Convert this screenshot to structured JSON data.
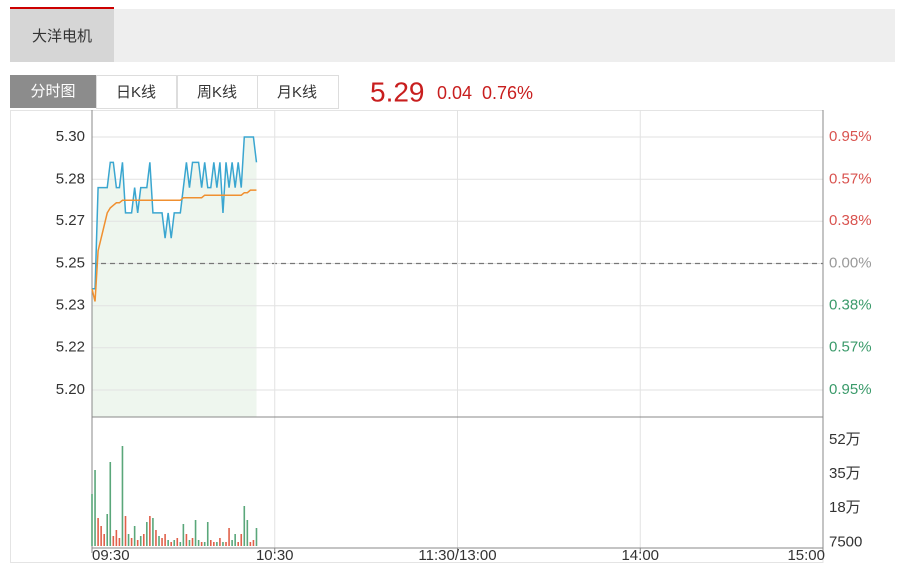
{
  "header": {
    "stock_name": "大洋电机"
  },
  "tabs": [
    "分时图",
    "日K线",
    "周K线",
    "月K线"
  ],
  "quote": {
    "price": "5.29",
    "change": "0.04",
    "change_pct": "0.76%"
  },
  "chart_data": {
    "type": "line",
    "x": [
      0,
      1,
      2,
      3,
      4,
      5,
      6,
      7,
      8,
      9,
      10,
      11,
      12,
      13,
      14,
      15,
      16,
      17,
      18,
      19,
      20,
      21,
      22,
      23,
      24,
      25,
      26,
      27,
      28,
      29,
      30,
      31,
      32,
      33,
      34,
      35,
      36,
      37,
      38,
      39,
      40,
      41,
      42,
      43,
      44,
      45,
      46,
      47,
      48,
      49,
      50,
      51,
      52,
      53,
      54
    ],
    "xlim": [
      0,
      240
    ],
    "xticks": [
      {
        "value": 0,
        "label": "09:30"
      },
      {
        "value": 60,
        "label": "10:30"
      },
      {
        "value": 120,
        "label": "11:30/13:00"
      },
      {
        "value": 180,
        "label": "14:00"
      },
      {
        "value": 240,
        "label": "15:00"
      }
    ],
    "ylim": [
      5.1893,
      5.3107
    ],
    "yticks": [
      {
        "value": 5.3,
        "label": "5.30"
      },
      {
        "value": 5.2833,
        "label": "5.28"
      },
      {
        "value": 5.2667,
        "label": "5.27"
      },
      5.25,
      {
        "value": 5.2333,
        "label": "5.23"
      },
      {
        "value": 5.2167,
        "label": "5.22"
      },
      {
        "value": 5.2,
        "label": "5.20"
      }
    ],
    "right_tick_labels": [
      "0.95%",
      "0.57%",
      "0.38%",
      "0.00%",
      "0.38%",
      "0.57%",
      "0.95%"
    ],
    "right_tick_colors": [
      "#d9534f",
      "#d9534f",
      "#d9534f",
      "#999999",
      "#3a9a6a",
      "#3a9a6a",
      "#3a9a6a"
    ],
    "prev_close": 5.25,
    "area_color": "#eef6ee",
    "series": [
      {
        "color": "#3aa6d0",
        "values": [
          5.24,
          5.24,
          5.28,
          5.28,
          5.28,
          5.28,
          5.29,
          5.29,
          5.28,
          5.28,
          5.29,
          5.27,
          5.27,
          5.27,
          5.28,
          5.27,
          5.28,
          5.28,
          5.28,
          5.29,
          5.27,
          5.27,
          5.27,
          5.27,
          5.26,
          5.27,
          5.26,
          5.27,
          5.27,
          5.27,
          5.28,
          5.29,
          5.28,
          5.29,
          5.29,
          5.29,
          5.28,
          5.29,
          5.28,
          5.28,
          5.29,
          5.28,
          5.29,
          5.27,
          5.29,
          5.28,
          5.29,
          5.28,
          5.29,
          5.28,
          5.3,
          5.3,
          5.3,
          5.3,
          5.29
        ]
      },
      {
        "color": "#f09030",
        "values": [
          5.24,
          5.235,
          5.255,
          5.26,
          5.265,
          5.27,
          5.272,
          5.273,
          5.274,
          5.274,
          5.275,
          5.275,
          5.275,
          5.275,
          5.275,
          5.275,
          5.275,
          5.275,
          5.275,
          5.275,
          5.275,
          5.275,
          5.275,
          5.275,
          5.275,
          5.275,
          5.275,
          5.275,
          5.275,
          5.275,
          5.276,
          5.276,
          5.276,
          5.276,
          5.276,
          5.276,
          5.276,
          5.277,
          5.277,
          5.277,
          5.277,
          5.277,
          5.277,
          5.277,
          5.277,
          5.277,
          5.277,
          5.277,
          5.277,
          5.277,
          5.278,
          5.278,
          5.279,
          5.279,
          5.279
        ]
      }
    ],
    "volume": {
      "ylim": [
        0,
        645000
      ],
      "yticks": [
        {
          "value": 520000,
          "label": "52万"
        },
        {
          "value": 350000,
          "label": "35万"
        },
        {
          "value": 180000,
          "label": "18万"
        },
        7500
      ],
      "values": [
        260000,
        380000,
        140000,
        100000,
        60000,
        160000,
        420000,
        50000,
        80000,
        40000,
        500000,
        150000,
        60000,
        40000,
        100000,
        30000,
        50000,
        60000,
        120000,
        150000,
        140000,
        80000,
        50000,
        40000,
        60000,
        30000,
        20000,
        30000,
        40000,
        20000,
        110000,
        60000,
        30000,
        40000,
        130000,
        30000,
        20000,
        20000,
        120000,
        30000,
        20000,
        20000,
        40000,
        20000,
        20000,
        90000,
        30000,
        60000,
        20000,
        60000,
        200000,
        130000,
        20000,
        30000,
        90000
      ],
      "colors": [
        "#5aa77a",
        "#5aa77a",
        "#e0604a",
        "#e0604a",
        "#e0604a",
        "#5aa77a",
        "#5aa77a",
        "#e0604a",
        "#e0604a",
        "#e0604a",
        "#5aa77a",
        "#e0604a",
        "#5aa77a",
        "#e0604a",
        "#5aa77a",
        "#e0604a",
        "#5aa77a",
        "#e0604a",
        "#5aa77a",
        "#e0604a",
        "#5aa77a",
        "#e0604a",
        "#5aa77a",
        "#e0604a",
        "#e0604a",
        "#5aa77a",
        "#e0604a",
        "#5aa77a",
        "#e0604a",
        "#5aa77a",
        "#5aa77a",
        "#e0604a",
        "#5aa77a",
        "#e0604a",
        "#5aa77a",
        "#5aa77a",
        "#e0604a",
        "#5aa77a",
        "#5aa77a",
        "#e0604a",
        "#e0604a",
        "#5aa77a",
        "#e0604a",
        "#5aa77a",
        "#e0604a",
        "#e0604a",
        "#5aa77a",
        "#5aa77a",
        "#e0604a",
        "#e0604a",
        "#5aa77a",
        "#5aa77a",
        "#e0604a",
        "#e0604a",
        "#5aa77a"
      ]
    }
  }
}
